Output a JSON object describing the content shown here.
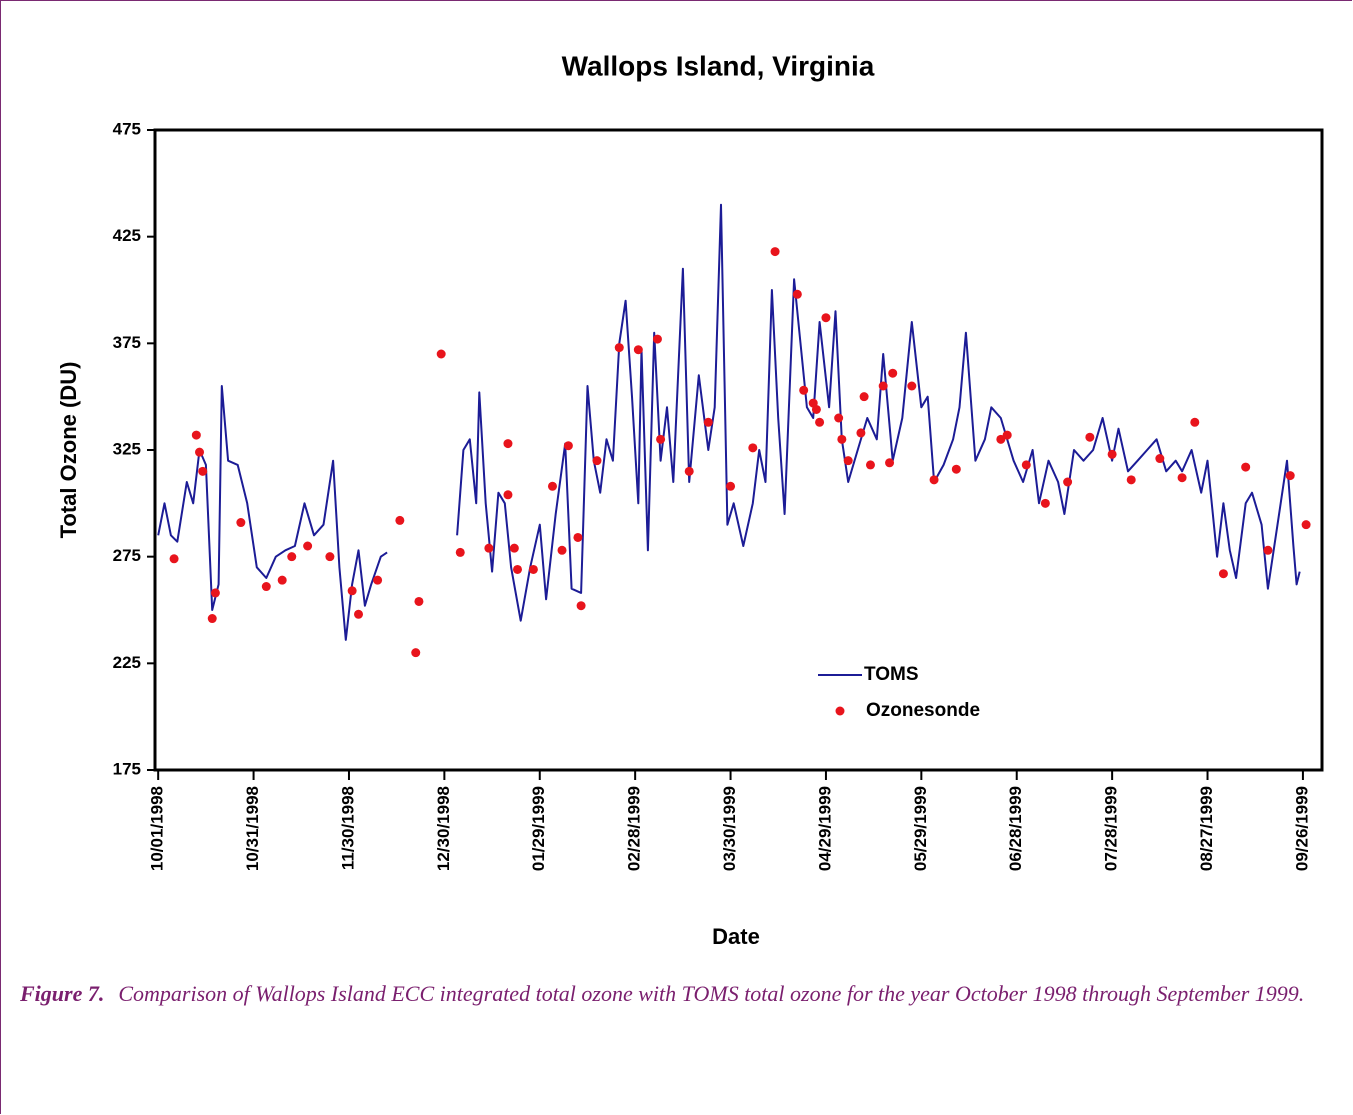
{
  "chart_data": {
    "type": "line",
    "title": "Wallops Island, Virginia",
    "x_label": "Date",
    "y_label": "Total Ozone (DU)",
    "xlim": [
      "1998-09-30",
      "1999-10-02"
    ],
    "xticks": [
      {
        "value": "1998-10-01",
        "label": "10/01/1998"
      },
      {
        "value": "1998-10-31",
        "label": "10/31/1998"
      },
      {
        "value": "1998-11-30",
        "label": "11/30/1998"
      },
      {
        "value": "1998-12-30",
        "label": "12/30/1998"
      },
      {
        "value": "1999-01-29",
        "label": "01/29/1999"
      },
      {
        "value": "1999-02-28",
        "label": "02/28/1999"
      },
      {
        "value": "1999-03-30",
        "label": "03/30/1999"
      },
      {
        "value": "1999-04-29",
        "label": "04/29/1999"
      },
      {
        "value": "1999-05-29",
        "label": "05/29/1999"
      },
      {
        "value": "1999-06-28",
        "label": "06/28/1999"
      },
      {
        "value": "1999-07-28",
        "label": "07/28/1999"
      },
      {
        "value": "1999-08-27",
        "label": "08/27/1999"
      },
      {
        "value": "1999-09-26",
        "label": "09/26/1999"
      }
    ],
    "ylim": [
      175,
      475
    ],
    "yticks": [
      175,
      225,
      275,
      325,
      375,
      425,
      475
    ],
    "series": [
      {
        "name": "TOMS",
        "type": "line",
        "color": "#1c1c96",
        "x": [
          "1998-10-01",
          "1998-10-03",
          "1998-10-05",
          "1998-10-07",
          "1998-10-10",
          "1998-10-12",
          "1998-10-14",
          "1998-10-16",
          "1998-10-18",
          "1998-10-20",
          "1998-10-21",
          "1998-10-23",
          "1998-10-26",
          "1998-10-29",
          "1998-11-01",
          "1998-11-04",
          "1998-11-07",
          "1998-11-10",
          "1998-11-13",
          "1998-11-16",
          "1998-11-19",
          "1998-11-22",
          "1998-11-25",
          "1998-11-27",
          "1998-11-29",
          "1998-12-01",
          "1998-12-03",
          "1998-12-05",
          "1998-12-07",
          "1998-12-10",
          "1998-12-12",
          "1998-12-24",
          "1999-01-03",
          "1999-01-05",
          "1999-01-07",
          "1999-01-09",
          "1999-01-10",
          "1999-01-12",
          "1999-01-14",
          "1999-01-16",
          "1999-01-18",
          "1999-01-20",
          "1999-01-23",
          "1999-01-26",
          "1999-01-29",
          "1999-01-31",
          "1999-02-03",
          "1999-02-06",
          "1999-02-08",
          "1999-02-11",
          "1999-02-13",
          "1999-02-15",
          "1999-02-17",
          "1999-02-19",
          "1999-02-21",
          "1999-02-23",
          "1999-02-25",
          "1999-02-27",
          "1999-03-01",
          "1999-03-02",
          "1999-03-04",
          "1999-03-06",
          "1999-03-08",
          "1999-03-10",
          "1999-03-12",
          "1999-03-15",
          "1999-03-17",
          "1999-03-20",
          "1999-03-23",
          "1999-03-25",
          "1999-03-27",
          "1999-03-29",
          "1999-03-31",
          "1999-04-03",
          "1999-04-06",
          "1999-04-08",
          "1999-04-10",
          "1999-04-12",
          "1999-04-14",
          "1999-04-16",
          "1999-04-19",
          "1999-04-21",
          "1999-04-23",
          "1999-04-25",
          "1999-04-27",
          "1999-04-30",
          "1999-05-02",
          "1999-05-04",
          "1999-05-06",
          "1999-05-09",
          "1999-05-12",
          "1999-05-15",
          "1999-05-17",
          "1999-05-20",
          "1999-05-23",
          "1999-05-26",
          "1999-05-29",
          "1999-05-31",
          "1999-06-02",
          "1999-06-05",
          "1999-06-08",
          "1999-06-10",
          "1999-06-12",
          "1999-06-15",
          "1999-06-18",
          "1999-06-20",
          "1999-06-23",
          "1999-06-27",
          "1999-06-30",
          "1999-07-03",
          "1999-07-05",
          "1999-07-08",
          "1999-07-11",
          "1999-07-13",
          "1999-07-16",
          "1999-07-19",
          "1999-07-22",
          "1999-07-25",
          "1999-07-28",
          "1999-07-30",
          "1999-08-02",
          "1999-08-05",
          "1999-08-08",
          "1999-08-11",
          "1999-08-14",
          "1999-08-17",
          "1999-08-19",
          "1999-08-22",
          "1999-08-25",
          "1999-08-27",
          "1999-08-30",
          "1999-09-01",
          "1999-09-03",
          "1999-09-05",
          "1999-09-08",
          "1999-09-10",
          "1999-09-13",
          "1999-09-15",
          "1999-09-18",
          "1999-09-21",
          "1999-09-23",
          "1999-09-24",
          "1999-09-25"
        ],
        "values": [
          285,
          300,
          285,
          282,
          310,
          300,
          325,
          318,
          250,
          262,
          355,
          320,
          318,
          300,
          270,
          265,
          275,
          278,
          280,
          300,
          285,
          290,
          320,
          270,
          236,
          262,
          278,
          252,
          262,
          275,
          277,
          null,
          285,
          325,
          330,
          300,
          352,
          300,
          268,
          305,
          300,
          270,
          245,
          270,
          290,
          255,
          295,
          328,
          260,
          258,
          355,
          320,
          305,
          330,
          320,
          375,
          395,
          350,
          300,
          372,
          278,
          380,
          320,
          345,
          310,
          410,
          310,
          360,
          325,
          345,
          440,
          290,
          300,
          280,
          300,
          325,
          310,
          400,
          340,
          295,
          405,
          375,
          345,
          340,
          385,
          345,
          390,
          330,
          310,
          325,
          340,
          330,
          370,
          320,
          340,
          385,
          345,
          350,
          310,
          318,
          330,
          345,
          380,
          320,
          330,
          345,
          340,
          320,
          310,
          325,
          300,
          320,
          310,
          295,
          325,
          320,
          325,
          340,
          320,
          335,
          315,
          320,
          325,
          330,
          315,
          320,
          315,
          325,
          305,
          320,
          275,
          300,
          278,
          265,
          300,
          305,
          290,
          260,
          290,
          320,
          280,
          262,
          268
        ]
      },
      {
        "name": "Ozonesonde",
        "type": "scatter",
        "color": "#e8141c",
        "x": [
          "1998-10-06",
          "1998-10-13",
          "1998-10-14",
          "1998-10-15",
          "1998-10-18",
          "1998-10-19",
          "1998-10-27",
          "1998-11-04",
          "1998-11-09",
          "1998-11-12",
          "1998-11-17",
          "1998-11-24",
          "1998-12-01",
          "1998-12-03",
          "1998-12-09",
          "1998-12-16",
          "1998-12-21",
          "1998-12-22",
          "1998-12-29",
          "1999-01-04",
          "1999-01-13",
          "1999-01-19",
          "1999-01-19",
          "1999-01-21",
          "1999-01-22",
          "1999-01-27",
          "1999-02-02",
          "1999-02-05",
          "1999-02-07",
          "1999-02-10",
          "1999-02-11",
          "1999-02-16",
          "1999-02-23",
          "1999-03-01",
          "1999-03-07",
          "1999-03-08",
          "1999-03-17",
          "1999-03-23",
          "1999-03-30",
          "1999-04-06",
          "1999-04-13",
          "1999-04-20",
          "1999-04-22",
          "1999-04-25",
          "1999-04-26",
          "1999-04-27",
          "1999-04-29",
          "1999-05-03",
          "1999-05-04",
          "1999-05-06",
          "1999-05-10",
          "1999-05-11",
          "1999-05-13",
          "1999-05-17",
          "1999-05-19",
          "1999-05-20",
          "1999-05-26",
          "1999-06-02",
          "1999-06-09",
          "1999-06-23",
          "1999-06-25",
          "1999-07-01",
          "1999-07-07",
          "1999-07-14",
          "1999-07-21",
          "1999-07-28",
          "1999-08-03",
          "1999-08-12",
          "1999-08-19",
          "1999-08-23",
          "1999-09-01",
          "1999-09-08",
          "1999-09-15",
          "1999-09-22",
          "1999-09-27"
        ],
        "values": [
          274,
          332,
          324,
          315,
          246,
          258,
          291,
          261,
          264,
          275,
          280,
          275,
          259,
          248,
          264,
          292,
          230,
          254,
          370,
          277,
          279,
          328,
          304,
          279,
          269,
          269,
          308,
          278,
          327,
          284,
          252,
          320,
          373,
          372,
          377,
          330,
          315,
          338,
          308,
          326,
          418,
          398,
          353,
          347,
          344,
          338,
          387,
          340,
          330,
          320,
          333,
          350,
          318,
          355,
          319,
          361,
          355,
          311,
          316,
          330,
          332,
          318,
          300,
          310,
          331,
          323,
          311,
          321,
          312,
          338,
          267,
          317,
          278,
          313,
          290
        ]
      }
    ]
  },
  "caption": {
    "label": "Figure 7.",
    "text": "Comparison of Wallops Island ECC integrated total ozone with TOMS total ozone for the year October 1998 through September 1999."
  }
}
